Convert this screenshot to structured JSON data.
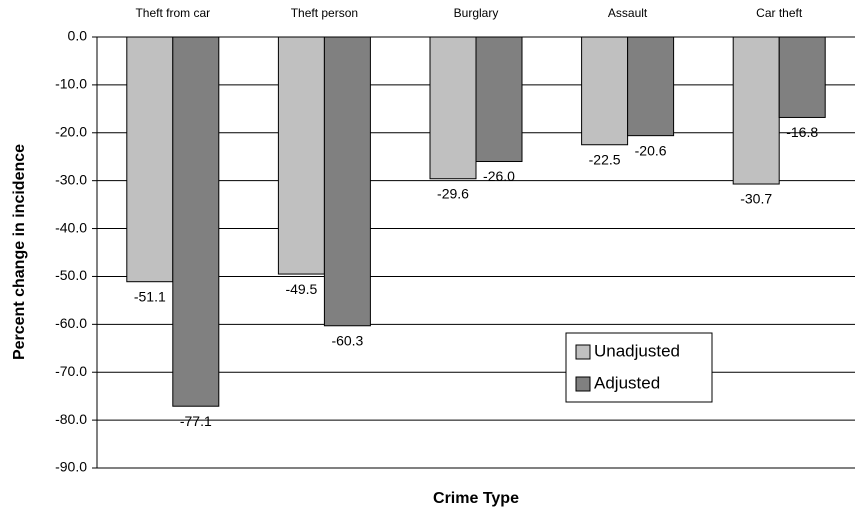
{
  "chart_data": {
    "type": "bar",
    "x_label": "Crime Type",
    "y_label": "Percent change in incidence",
    "categories": [
      "Theft from car",
      "Theft person",
      "Burglary",
      "Assault",
      "Car theft"
    ],
    "series": [
      {
        "name": "Unadjusted",
        "color": "#c0c0c0",
        "values": [
          -51.1,
          -49.5,
          -29.6,
          -22.5,
          -30.7
        ],
        "value_labels": [
          "-51.1",
          "-49.5",
          "-29.6",
          "-22.5",
          "-30.7"
        ]
      },
      {
        "name": "Adjusted",
        "color": "#808080",
        "values": [
          -77.1,
          -60.3,
          -26.0,
          -20.6,
          -16.8
        ],
        "value_labels": [
          "-77.1",
          "-60.3",
          "-26.0",
          "-20.6",
          "-16.8"
        ]
      }
    ],
    "ylim": [
      -90,
      0
    ],
    "yticks": [
      {
        "value": 0,
        "label": "0.0"
      },
      {
        "value": -10,
        "label": "-10.0"
      },
      {
        "value": -20,
        "label": "-20.0"
      },
      {
        "value": -30,
        "label": "-30.0"
      },
      {
        "value": -40,
        "label": "-40.0"
      },
      {
        "value": -50,
        "label": "-50.0"
      },
      {
        "value": -60,
        "label": "-60.0"
      },
      {
        "value": -70,
        "label": "-70.0"
      },
      {
        "value": -80,
        "label": "-80.0"
      },
      {
        "value": -90,
        "label": "-90.0"
      }
    ],
    "grid": true
  }
}
